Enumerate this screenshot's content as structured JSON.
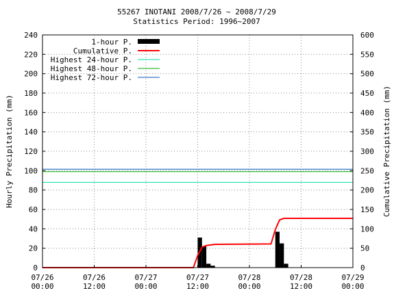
{
  "chart_data": {
    "type": "bar",
    "title": "55267 INOTANI  2008/7/26 ~ 2008/7/29",
    "subtitle": "Statistics Period: 1996~2007",
    "ylabel_left": "Hourly Precipitation (mm)",
    "ylabel_right": "Cumulative Precipitation (mm)",
    "ylim_left": [
      0,
      240
    ],
    "ylim_right": [
      0,
      600
    ],
    "yticks_left": [
      "0",
      "20",
      "40",
      "60",
      "80",
      "100",
      "120",
      "140",
      "160",
      "180",
      "200",
      "220",
      "240"
    ],
    "yticks_right": [
      "0",
      "50",
      "100",
      "150",
      "200",
      "250",
      "300",
      "350",
      "400",
      "450",
      "500",
      "550",
      "600"
    ],
    "x_range_hours": [
      0,
      72
    ],
    "xticks": [
      {
        "hour": 0,
        "line1": "07/26",
        "line2": "00:00"
      },
      {
        "hour": 12,
        "line1": "07/26",
        "line2": "12:00"
      },
      {
        "hour": 24,
        "line1": "07/27",
        "line2": "00:00"
      },
      {
        "hour": 36,
        "line1": "07/27",
        "line2": "12:00"
      },
      {
        "hour": 48,
        "line1": "07/28",
        "line2": "00:00"
      },
      {
        "hour": 60,
        "line1": "07/28",
        "line2": "12:00"
      },
      {
        "hour": 72,
        "line1": "07/29",
        "line2": "00:00"
      }
    ],
    "grid": true,
    "legend_position": "top-left",
    "series": [
      {
        "name": "1-hour P.",
        "kind": "bar",
        "axis": "left",
        "color": "#000000",
        "points": [
          {
            "hour": 36,
            "value": 31
          },
          {
            "hour": 37,
            "value": 22
          },
          {
            "hour": 38,
            "value": 4
          },
          {
            "hour": 39,
            "value": 2
          },
          {
            "hour": 54,
            "value": 37
          },
          {
            "hour": 55,
            "value": 25
          },
          {
            "hour": 56,
            "value": 4
          }
        ]
      },
      {
        "name": "Cumulative P.",
        "kind": "line",
        "axis": "right",
        "color": "#ff0000",
        "points": [
          {
            "hour": 0,
            "value": 0
          },
          {
            "hour": 35,
            "value": 0
          },
          {
            "hour": 36,
            "value": 31
          },
          {
            "hour": 37,
            "value": 53
          },
          {
            "hour": 38,
            "value": 57
          },
          {
            "hour": 40,
            "value": 60
          },
          {
            "hour": 53,
            "value": 61
          },
          {
            "hour": 54,
            "value": 98
          },
          {
            "hour": 55,
            "value": 123
          },
          {
            "hour": 56,
            "value": 127
          },
          {
            "hour": 72,
            "value": 127
          }
        ]
      },
      {
        "name": "Highest 24-hour P.",
        "kind": "hline",
        "axis": "left",
        "color": "#00dda0",
        "value": 88
      },
      {
        "name": "Highest 48-hour P.",
        "kind": "hline",
        "axis": "left",
        "color": "#00aa00",
        "value": 99
      },
      {
        "name": "Highest 72-hour P.",
        "kind": "hline",
        "axis": "left",
        "color": "#0055bb",
        "value": 101.5
      }
    ]
  }
}
